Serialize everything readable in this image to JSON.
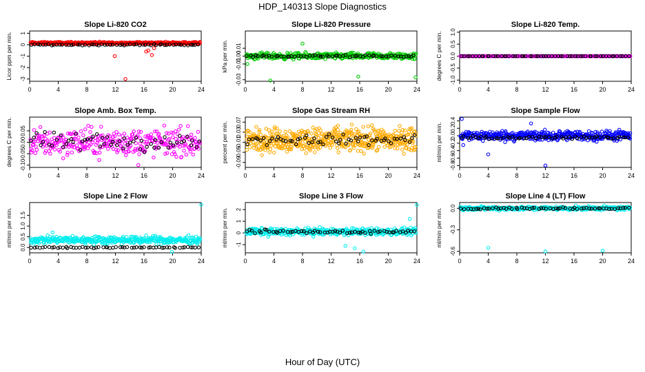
{
  "figure": {
    "title": "HDP_140313  Slope Diagnostics",
    "xlabel": "Hour of Day (UTC)"
  },
  "chart_data": [
    {
      "type": "scatter",
      "title": "Slope Li-820 CO2",
      "ylabel": "Licor ppm per min.",
      "xlim": [
        0,
        24
      ],
      "ylim": [
        -3.2,
        1.2
      ],
      "xticks": [
        0,
        4,
        8,
        12,
        16,
        20,
        24
      ],
      "xtick_labels": [
        "0",
        "4",
        "8",
        "12",
        "16",
        "20",
        "24"
      ],
      "yticks": [
        -3,
        -2,
        -1,
        0,
        1
      ],
      "ytick_labels": [
        "-3",
        "-2",
        "-1",
        "0",
        "1"
      ],
      "series": [
        {
          "color": "#ff0000",
          "base": 0.15,
          "spread": 0.15,
          "count": 360,
          "outliers": [
            [
              11.9,
              -1.0
            ],
            [
              13.4,
              -3.0
            ],
            [
              16.3,
              -0.6
            ],
            [
              16.6,
              -0.5
            ],
            [
              17.1,
              -0.9
            ],
            [
              17.4,
              -0.3
            ]
          ]
        },
        {
          "color": "#000000",
          "base": 0.0,
          "spread": 0.08,
          "count": 60,
          "outliers": []
        }
      ]
    },
    {
      "type": "scatter",
      "title": "Slope Li-820 Pressure",
      "ylabel": "kPa per min.",
      "xlim": [
        0,
        24
      ],
      "ylim": [
        -0.032,
        0.032
      ],
      "xticks": [
        0,
        4,
        8,
        12,
        16,
        20,
        24
      ],
      "xtick_labels": [
        "0",
        "4",
        "8",
        "12",
        "16",
        "20",
        "24"
      ],
      "yticks": [
        -0.03,
        -0.01,
        0.0,
        0.01
      ],
      "ytick_labels": [
        "-0.03",
        "-0.01",
        "0.00",
        "0.01"
      ],
      "series": [
        {
          "color": "#00cc00",
          "base": 0.0,
          "spread": 0.006,
          "count": 360,
          "outliers": [
            [
              3.5,
              -0.031
            ],
            [
              8.0,
              0.016
            ],
            [
              15.8,
              -0.026
            ],
            [
              23.8,
              -0.027
            ],
            [
              0.3,
              -0.01
            ]
          ]
        },
        {
          "color": "#000000",
          "base": 0.0,
          "spread": 0.002,
          "count": 60,
          "outliers": []
        }
      ]
    },
    {
      "type": "scatter",
      "title": "Slope Li-820 Temp.",
      "ylabel": "degrees C per min.",
      "xlim": [
        0,
        24
      ],
      "ylim": [
        -1.05,
        1.05
      ],
      "xticks": [
        0,
        4,
        8,
        12,
        16,
        20,
        24
      ],
      "xtick_labels": [
        "0",
        "4",
        "8",
        "12",
        "16",
        "20",
        "24"
      ],
      "yticks": [
        -1.0,
        -0.5,
        0.0,
        0.5,
        1.0
      ],
      "ytick_labels": [
        "-1.0",
        "-0.5",
        "0.0",
        "0.5",
        "1.0"
      ],
      "series": [
        {
          "color": "#ff00ff",
          "base": 0.0,
          "spread": 0.0,
          "count": 300,
          "outliers": []
        },
        {
          "color": "#000000",
          "base": 0.0,
          "spread": 0.0,
          "count": 60,
          "outliers": []
        }
      ]
    },
    {
      "type": "scatter",
      "title": "Slope Amb. Box Temp.",
      "ylabel": "degrees C per min.",
      "xlim": [
        0,
        24
      ],
      "ylim": [
        -0.11,
        0.11
      ],
      "xticks": [
        0,
        4,
        8,
        12,
        16,
        20,
        24
      ],
      "xtick_labels": [
        "0",
        "4",
        "8",
        "12",
        "16",
        "20",
        "24"
      ],
      "yticks": [
        -0.1,
        -0.05,
        0.0,
        0.05
      ],
      "ytick_labels": [
        "-0.10",
        "-0.05",
        "0.00",
        "0.05"
      ],
      "series": [
        {
          "color": "#ff00ff",
          "base": 0.0,
          "spread": 0.09,
          "count": 330,
          "outliers": [
            [
              15.2,
              -0.1
            ]
          ]
        },
        {
          "color": "#000000",
          "base": 0.0,
          "spread": 0.06,
          "count": 60,
          "outliers": []
        }
      ]
    },
    {
      "type": "scatter",
      "title": "Slope Gas Stream RH",
      "ylabel": "percent per min.",
      "xlim": [
        0,
        24
      ],
      "ylim": [
        -0.11,
        0.09
      ],
      "xticks": [
        0,
        4,
        8,
        12,
        16,
        20,
        24
      ],
      "xtick_labels": [
        "0",
        "4",
        "8",
        "12",
        "16",
        "20",
        "24"
      ],
      "yticks": [
        -0.09,
        -0.05,
        -0.01,
        0.03,
        0.07
      ],
      "ytick_labels": [
        "-0.09",
        "-0.05",
        "-0.01",
        "0.03",
        "0.07"
      ],
      "series": [
        {
          "color": "#ffaa00",
          "base": 0.0,
          "spread": 0.07,
          "count": 520,
          "outliers": []
        },
        {
          "color": "#000000",
          "base": 0.0,
          "spread": 0.03,
          "count": 60,
          "outliers": []
        }
      ]
    },
    {
      "type": "scatter",
      "title": "Slope Sample Flow",
      "ylabel": "ml/min per min.",
      "xlim": [
        0,
        24
      ],
      "ylim": [
        -0.85,
        0.5
      ],
      "xticks": [
        0,
        4,
        8,
        12,
        16,
        20,
        24
      ],
      "xtick_labels": [
        "0",
        "4",
        "8",
        "12",
        "16",
        "20",
        "24"
      ],
      "yticks": [
        -0.8,
        -0.6,
        -0.4,
        -0.2,
        0.0,
        0.2,
        0.4
      ],
      "ytick_labels": [
        "-0.8",
        "-0.6",
        "-0.4",
        "-0.2",
        "0.0",
        "0.2",
        "0.4"
      ],
      "series": [
        {
          "color": "#0000ff",
          "base": 0.0,
          "spread": 0.2,
          "count": 420,
          "outliers": [
            [
              0.3,
              0.45
            ],
            [
              0.5,
              -0.25
            ],
            [
              12.0,
              -0.8
            ],
            [
              4.0,
              -0.5
            ],
            [
              10.0,
              0.33
            ]
          ]
        },
        {
          "color": "#000000",
          "base": -0.05,
          "spread": 0.06,
          "count": 60,
          "outliers": []
        }
      ]
    },
    {
      "type": "scatter",
      "title": "Slope Line 2 Flow",
      "ylabel": "ml/min per min.",
      "xlim": [
        0,
        24
      ],
      "ylim": [
        -0.25,
        2.1
      ],
      "xticks": [
        0,
        4,
        8,
        12,
        16,
        20,
        24
      ],
      "xtick_labels": [
        "0",
        "4",
        "8",
        "12",
        "16",
        "20",
        "24"
      ],
      "yticks": [
        0.0,
        0.5,
        1.0,
        1.5
      ],
      "ytick_labels": [
        "0.0",
        "0.5",
        "1.0",
        "1.5"
      ],
      "series": [
        {
          "color": "#00eeee",
          "base": 0.35,
          "spread": 0.25,
          "count": 400,
          "outliers": [
            [
              24.0,
              2.0
            ],
            [
              19.9,
              -0.2
            ],
            [
              3.2,
              0.7
            ]
          ]
        },
        {
          "color": "#000000",
          "base": 0.0,
          "spread": 0.04,
          "count": 60,
          "outliers": []
        }
      ]
    },
    {
      "type": "scatter",
      "title": "Slope Line 3 Flow",
      "ylabel": "ml/min per min.",
      "xlim": [
        0,
        24
      ],
      "ylim": [
        -1.7,
        2.6
      ],
      "xticks": [
        0,
        4,
        8,
        12,
        16,
        20,
        24
      ],
      "xtick_labels": [
        "0",
        "4",
        "8",
        "12",
        "16",
        "20",
        "24"
      ],
      "yticks": [
        -1,
        0,
        1,
        2
      ],
      "ytick_labels": [
        "-1",
        "0",
        "1",
        "2"
      ],
      "series": [
        {
          "color": "#00eeee",
          "base": 0.1,
          "spread": 0.45,
          "count": 380,
          "outliers": [
            [
              24.0,
              2.4
            ],
            [
              16.5,
              -1.6
            ],
            [
              15.3,
              -1.3
            ],
            [
              14.0,
              -1.1
            ],
            [
              23.0,
              1.2
            ]
          ]
        },
        {
          "color": "#000000",
          "base": 0.1,
          "spread": 0.25,
          "count": 60,
          "outliers": []
        }
      ]
    },
    {
      "type": "scatter",
      "title": "Slope Line 4 (LT) Flow",
      "ylabel": "ml/min per min.",
      "xlim": [
        0,
        24
      ],
      "ylim": [
        -0.62,
        0.08
      ],
      "xticks": [
        0,
        4,
        8,
        12,
        16,
        20,
        24
      ],
      "xtick_labels": [
        "0",
        "4",
        "8",
        "12",
        "16",
        "20",
        "24"
      ],
      "yticks": [
        -0.6,
        -0.3,
        0.0
      ],
      "ytick_labels": [
        "-0.6",
        "-0.3",
        "0.0"
      ],
      "series": [
        {
          "color": "#00eeee",
          "base": 0.0,
          "spread": 0.04,
          "count": 360,
          "outliers": [
            [
              4.0,
              -0.55
            ],
            [
              12.0,
              -0.6
            ],
            [
              20.0,
              -0.59
            ],
            [
              0.5,
              -0.03
            ]
          ]
        },
        {
          "color": "#000000",
          "base": 0.0,
          "spread": 0.02,
          "count": 60,
          "outliers": []
        }
      ]
    }
  ]
}
